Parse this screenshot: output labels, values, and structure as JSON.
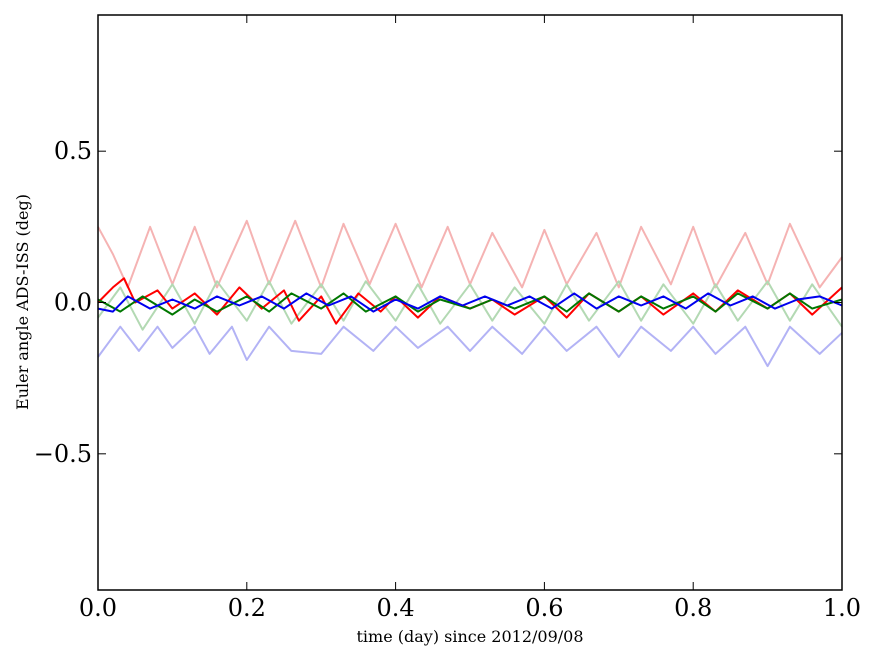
{
  "chart_data": {
    "type": "line",
    "title": "",
    "xlabel": "time (day) since 2012/09/08",
    "ylabel": "Euler angle ADS-ISS (deg)",
    "xlim": [
      0.0,
      1.0
    ],
    "ylim": [
      -0.95,
      0.95
    ],
    "x_ticks": [
      0.0,
      0.2,
      0.4,
      0.6,
      0.8,
      1.0
    ],
    "x_tick_labels": [
      "0.0",
      "0.2",
      "0.4",
      "0.6",
      "0.8",
      "1.0"
    ],
    "y_ticks": [
      -0.5,
      0.0,
      0.5
    ],
    "y_tick_labels": [
      "−0.5",
      "0.0",
      "0.5"
    ],
    "grid": false,
    "legend": "none",
    "series": [
      {
        "color": "#f5b3b3",
        "x": [
          0.0,
          0.02,
          0.04,
          0.07,
          0.1,
          0.13,
          0.16,
          0.2,
          0.23,
          0.265,
          0.3,
          0.33,
          0.365,
          0.4,
          0.435,
          0.47,
          0.5,
          0.53,
          0.57,
          0.6,
          0.63,
          0.67,
          0.7,
          0.73,
          0.77,
          0.8,
          0.83,
          0.87,
          0.9,
          0.93,
          0.97,
          1.0
        ],
        "values": [
          0.25,
          0.16,
          0.05,
          0.25,
          0.06,
          0.25,
          0.05,
          0.27,
          0.06,
          0.27,
          0.05,
          0.26,
          0.06,
          0.26,
          0.05,
          0.25,
          0.06,
          0.23,
          0.05,
          0.24,
          0.06,
          0.23,
          0.05,
          0.25,
          0.06,
          0.25,
          0.05,
          0.23,
          0.06,
          0.26,
          0.05,
          0.15
        ]
      },
      {
        "color": "#b3d9b3",
        "x": [
          0.0,
          0.03,
          0.06,
          0.1,
          0.13,
          0.16,
          0.2,
          0.23,
          0.26,
          0.3,
          0.33,
          0.36,
          0.4,
          0.43,
          0.46,
          0.5,
          0.53,
          0.56,
          0.6,
          0.63,
          0.66,
          0.7,
          0.73,
          0.76,
          0.8,
          0.83,
          0.86,
          0.9,
          0.93,
          0.96,
          1.0
        ],
        "values": [
          -0.05,
          0.05,
          -0.09,
          0.06,
          -0.07,
          0.07,
          -0.06,
          0.07,
          -0.07,
          0.06,
          -0.06,
          0.07,
          -0.06,
          0.06,
          -0.07,
          0.06,
          -0.06,
          0.05,
          -0.07,
          0.06,
          -0.06,
          0.07,
          -0.06,
          0.06,
          -0.07,
          0.06,
          -0.06,
          0.07,
          -0.06,
          0.06,
          -0.08
        ]
      },
      {
        "color": "#b3b3f5",
        "x": [
          0.0,
          0.03,
          0.055,
          0.08,
          0.1,
          0.13,
          0.15,
          0.18,
          0.2,
          0.23,
          0.26,
          0.3,
          0.33,
          0.37,
          0.4,
          0.43,
          0.47,
          0.5,
          0.53,
          0.57,
          0.6,
          0.63,
          0.67,
          0.7,
          0.73,
          0.77,
          0.8,
          0.83,
          0.87,
          0.9,
          0.93,
          0.97,
          1.0
        ],
        "values": [
          -0.18,
          -0.08,
          -0.16,
          -0.08,
          -0.15,
          -0.08,
          -0.17,
          -0.08,
          -0.19,
          -0.08,
          -0.16,
          -0.17,
          -0.08,
          -0.16,
          -0.08,
          -0.15,
          -0.08,
          -0.16,
          -0.08,
          -0.17,
          -0.08,
          -0.16,
          -0.08,
          -0.18,
          -0.08,
          -0.16,
          -0.08,
          -0.17,
          -0.08,
          -0.21,
          -0.08,
          -0.17,
          -0.1
        ]
      },
      {
        "color": "#ff0000",
        "x": [
          0.0,
          0.02,
          0.035,
          0.05,
          0.08,
          0.1,
          0.13,
          0.16,
          0.19,
          0.22,
          0.25,
          0.27,
          0.3,
          0.32,
          0.35,
          0.38,
          0.4,
          0.43,
          0.46,
          0.5,
          0.53,
          0.56,
          0.6,
          0.63,
          0.66,
          0.7,
          0.73,
          0.76,
          0.8,
          0.83,
          0.86,
          0.9,
          0.93,
          0.96,
          1.0
        ],
        "values": [
          0.0,
          0.05,
          0.08,
          0.0,
          0.04,
          -0.02,
          0.03,
          -0.04,
          0.05,
          -0.02,
          0.04,
          -0.06,
          0.02,
          -0.07,
          0.03,
          -0.03,
          0.02,
          -0.05,
          0.02,
          -0.02,
          0.01,
          -0.04,
          0.02,
          -0.05,
          0.03,
          -0.03,
          0.02,
          -0.04,
          0.03,
          -0.03,
          0.04,
          -0.02,
          0.03,
          -0.04,
          0.05
        ]
      },
      {
        "color": "#007700",
        "x": [
          0.0,
          0.03,
          0.06,
          0.1,
          0.13,
          0.16,
          0.2,
          0.23,
          0.26,
          0.3,
          0.33,
          0.36,
          0.4,
          0.43,
          0.46,
          0.5,
          0.53,
          0.56,
          0.6,
          0.63,
          0.66,
          0.7,
          0.73,
          0.76,
          0.8,
          0.83,
          0.86,
          0.9,
          0.93,
          0.96,
          1.0
        ],
        "values": [
          0.01,
          -0.03,
          0.02,
          -0.04,
          0.01,
          -0.03,
          0.02,
          -0.03,
          0.03,
          -0.02,
          0.03,
          -0.03,
          0.02,
          -0.03,
          0.01,
          -0.02,
          0.01,
          -0.02,
          0.02,
          -0.03,
          0.03,
          -0.03,
          0.02,
          -0.02,
          0.02,
          -0.03,
          0.03,
          -0.02,
          0.03,
          -0.02,
          0.01
        ]
      },
      {
        "color": "#0000ee",
        "x": [
          0.0,
          0.02,
          0.04,
          0.07,
          0.1,
          0.13,
          0.16,
          0.19,
          0.22,
          0.25,
          0.28,
          0.31,
          0.34,
          0.37,
          0.4,
          0.43,
          0.46,
          0.49,
          0.52,
          0.55,
          0.58,
          0.61,
          0.64,
          0.67,
          0.7,
          0.73,
          0.76,
          0.79,
          0.82,
          0.85,
          0.88,
          0.91,
          0.94,
          0.97,
          1.0
        ],
        "values": [
          -0.02,
          -0.03,
          0.02,
          -0.02,
          0.01,
          -0.02,
          0.02,
          -0.01,
          0.02,
          -0.02,
          0.03,
          -0.01,
          0.02,
          -0.03,
          0.01,
          -0.02,
          0.02,
          -0.01,
          0.02,
          -0.01,
          0.02,
          -0.02,
          0.03,
          -0.02,
          0.02,
          -0.01,
          0.02,
          -0.02,
          0.03,
          -0.01,
          0.02,
          -0.02,
          0.01,
          0.02,
          -0.01
        ]
      }
    ]
  }
}
